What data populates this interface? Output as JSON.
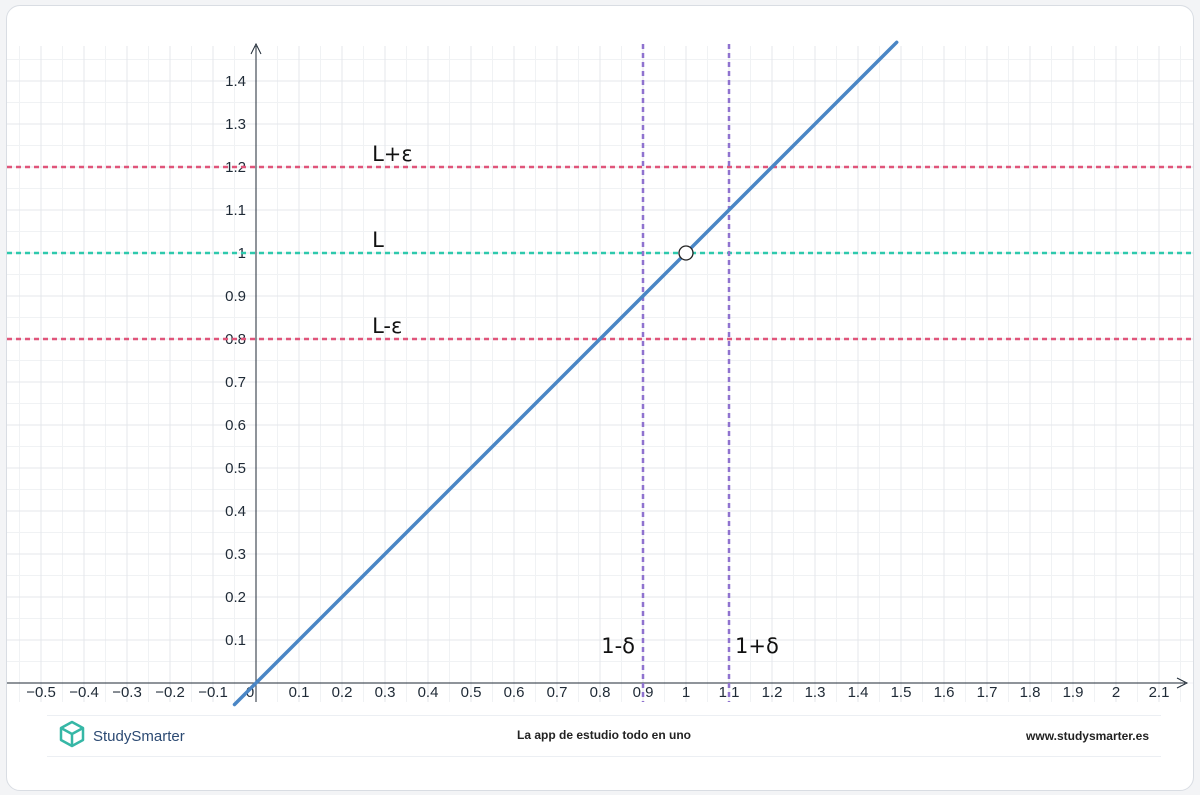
{
  "chart_data": {
    "type": "line",
    "xlim": [
      -0.55,
      2.18
    ],
    "ylim": [
      -0.05,
      1.48
    ],
    "grid": true,
    "x_ticks": [
      {
        "v": -0.5,
        "label": "−0.5"
      },
      {
        "v": -0.4,
        "label": "−0.4"
      },
      {
        "v": -0.3,
        "label": "−0.3"
      },
      {
        "v": -0.2,
        "label": "−0.2"
      },
      {
        "v": -0.1,
        "label": "−0.1"
      },
      {
        "v": 0.1,
        "label": "0.1"
      },
      {
        "v": 0.2,
        "label": "0.2"
      },
      {
        "v": 0.3,
        "label": "0.3"
      },
      {
        "v": 0.4,
        "label": "0.4"
      },
      {
        "v": 0.5,
        "label": "0.5"
      },
      {
        "v": 0.6,
        "label": "0.6"
      },
      {
        "v": 0.7,
        "label": "0.7"
      },
      {
        "v": 0.8,
        "label": "0.8"
      },
      {
        "v": 0.9,
        "label": "0.9"
      },
      {
        "v": 1.0,
        "label": "1"
      },
      {
        "v": 1.1,
        "label": "1.1"
      },
      {
        "v": 1.2,
        "label": "1.2"
      },
      {
        "v": 1.3,
        "label": "1.3"
      },
      {
        "v": 1.4,
        "label": "1.4"
      },
      {
        "v": 1.5,
        "label": "1.5"
      },
      {
        "v": 1.6,
        "label": "1.6"
      },
      {
        "v": 1.7,
        "label": "1.7"
      },
      {
        "v": 1.8,
        "label": "1.8"
      },
      {
        "v": 1.9,
        "label": "1.9"
      },
      {
        "v": 2.0,
        "label": "2"
      },
      {
        "v": 2.1,
        "label": "2.1"
      }
    ],
    "y_ticks": [
      {
        "v": 0.1,
        "label": "0.1"
      },
      {
        "v": 0.2,
        "label": "0.2"
      },
      {
        "v": 0.3,
        "label": "0.3"
      },
      {
        "v": 0.4,
        "label": "0.4"
      },
      {
        "v": 0.5,
        "label": "0.5"
      },
      {
        "v": 0.6,
        "label": "0.6"
      },
      {
        "v": 0.7,
        "label": "0.7"
      },
      {
        "v": 0.8,
        "label": "0.8"
      },
      {
        "v": 0.9,
        "label": "0.9"
      },
      {
        "v": 1.0,
        "label": "1"
      },
      {
        "v": 1.1,
        "label": "1.1"
      },
      {
        "v": 1.2,
        "label": "1.2"
      },
      {
        "v": 1.3,
        "label": "1.3"
      },
      {
        "v": 1.4,
        "label": "1.4"
      }
    ],
    "origin_label": "0",
    "series": [
      {
        "x": [
          -0.05,
          1.49
        ],
        "y": [
          -0.05,
          1.49
        ],
        "color": "#4a86c5",
        "hole": {
          "x": 1,
          "y": 1
        }
      }
    ],
    "horizontal_lines": [
      {
        "y": 1.2,
        "label": "L+ε",
        "label_x": 0.27,
        "color": "#e0557a"
      },
      {
        "y": 1.0,
        "label": "L",
        "label_x": 0.27,
        "color": "#2ec9ad"
      },
      {
        "y": 0.8,
        "label": "L-ε",
        "label_x": 0.27,
        "color": "#e0557a"
      }
    ],
    "vertical_lines": [
      {
        "x": 0.9,
        "label": "1-δ",
        "label_y": 0.07,
        "color": "#8f72cf"
      },
      {
        "x": 1.1,
        "label": "1+δ",
        "label_y": 0.07,
        "color": "#8f72cf"
      }
    ]
  },
  "footer": {
    "brand": "StudySmarter",
    "tagline": "La app de estudio todo en uno",
    "url": "www.studysmarter.es"
  },
  "colors": {
    "grid": "#e4e7eb",
    "axis": "#1f2a36",
    "logo": "#36b7a6"
  }
}
